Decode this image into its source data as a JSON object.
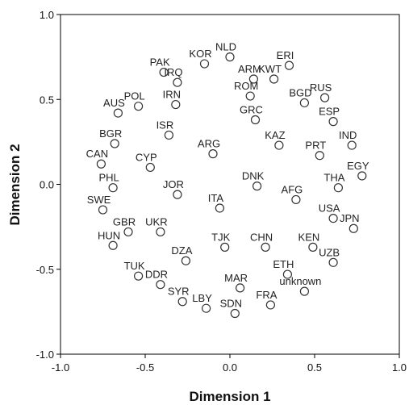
{
  "chart_data": {
    "type": "scatter",
    "title": "",
    "xlabel": "Dimension 1",
    "ylabel": "Dimension 2",
    "xlim": [
      -1.0,
      1.0
    ],
    "ylim": [
      -1.0,
      1.0
    ],
    "xticks": [
      "-1.0",
      "-0.5",
      "0.0",
      "0.5",
      "1.0"
    ],
    "yticks": [
      "1.0",
      "0.5",
      "0.0",
      "-0.5",
      "-1.0"
    ],
    "grid": false,
    "points": [
      {
        "label": "NLD",
        "x": 0.0,
        "y": 0.75
      },
      {
        "label": "PAK",
        "x": -0.39,
        "y": 0.66
      },
      {
        "label": "KOR",
        "x": -0.15,
        "y": 0.71
      },
      {
        "label": "ERI",
        "x": 0.35,
        "y": 0.7
      },
      {
        "label": "ARM",
        "x": 0.14,
        "y": 0.62
      },
      {
        "label": "KWT",
        "x": 0.26,
        "y": 0.62
      },
      {
        "label": "IRQ",
        "x": -0.31,
        "y": 0.6
      },
      {
        "label": "BGD",
        "x": 0.44,
        "y": 0.48
      },
      {
        "label": "ROM",
        "x": 0.12,
        "y": 0.52
      },
      {
        "label": "RUS",
        "x": 0.56,
        "y": 0.51
      },
      {
        "label": "POL",
        "x": -0.54,
        "y": 0.46
      },
      {
        "label": "AUS",
        "x": -0.66,
        "y": 0.42
      },
      {
        "label": "IRN",
        "x": -0.32,
        "y": 0.47
      },
      {
        "label": "ESP",
        "x": 0.61,
        "y": 0.37
      },
      {
        "label": "GRC",
        "x": 0.15,
        "y": 0.38
      },
      {
        "label": "ISR",
        "x": -0.36,
        "y": 0.29
      },
      {
        "label": "IND",
        "x": 0.72,
        "y": 0.23
      },
      {
        "label": "BGR",
        "x": -0.68,
        "y": 0.24
      },
      {
        "label": "KAZ",
        "x": 0.29,
        "y": 0.23
      },
      {
        "label": "PRT",
        "x": 0.53,
        "y": 0.17
      },
      {
        "label": "ARG",
        "x": -0.1,
        "y": 0.18
      },
      {
        "label": "CAN",
        "x": -0.76,
        "y": 0.12
      },
      {
        "label": "CYP",
        "x": -0.47,
        "y": 0.1
      },
      {
        "label": "EGY",
        "x": 0.78,
        "y": 0.05
      },
      {
        "label": "DNK",
        "x": 0.16,
        "y": -0.01
      },
      {
        "label": "PHL",
        "x": -0.69,
        "y": -0.02
      },
      {
        "label": "AFG",
        "x": 0.39,
        "y": -0.09
      },
      {
        "label": "THA",
        "x": 0.64,
        "y": -0.02
      },
      {
        "label": "JOR",
        "x": -0.31,
        "y": -0.06
      },
      {
        "label": "SWE",
        "x": -0.75,
        "y": -0.15
      },
      {
        "label": "ITA",
        "x": -0.06,
        "y": -0.14
      },
      {
        "label": "USA",
        "x": 0.61,
        "y": -0.2
      },
      {
        "label": "JPN",
        "x": 0.73,
        "y": -0.26
      },
      {
        "label": "GBR",
        "x": -0.6,
        "y": -0.28
      },
      {
        "label": "UKR",
        "x": -0.41,
        "y": -0.28
      },
      {
        "label": "TJK",
        "x": -0.03,
        "y": -0.37
      },
      {
        "label": "CHN",
        "x": 0.21,
        "y": -0.37
      },
      {
        "label": "KEN",
        "x": 0.49,
        "y": -0.37
      },
      {
        "label": "HUN",
        "x": -0.69,
        "y": -0.36
      },
      {
        "label": "UZB",
        "x": 0.61,
        "y": -0.46
      },
      {
        "label": "DZA",
        "x": -0.26,
        "y": -0.45
      },
      {
        "label": "TUK",
        "x": -0.54,
        "y": -0.54
      },
      {
        "label": "ETH",
        "x": 0.34,
        "y": -0.53
      },
      {
        "label": "DDR",
        "x": -0.41,
        "y": -0.59
      },
      {
        "label": "unknown",
        "x": 0.44,
        "y": -0.63
      },
      {
        "label": "MAR",
        "x": 0.06,
        "y": -0.61
      },
      {
        "label": "SYR",
        "x": -0.28,
        "y": -0.69
      },
      {
        "label": "LBY",
        "x": -0.14,
        "y": -0.73
      },
      {
        "label": "FRA",
        "x": 0.24,
        "y": -0.71
      },
      {
        "label": "SDN",
        "x": 0.03,
        "y": -0.76
      }
    ]
  }
}
